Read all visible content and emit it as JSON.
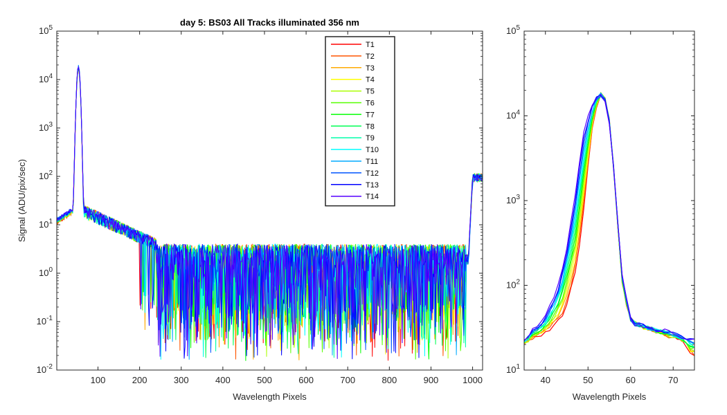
{
  "chart_data": [
    {
      "type": "line",
      "title": "day 5: BS03   All Tracks illuminated   356 nm",
      "xlabel": "Wavelength Pixels",
      "ylabel": "Signal (ADU/pix/sec)",
      "xlim": [
        1,
        1024
      ],
      "ylim": [
        0.01,
        100000
      ],
      "yscale": "log",
      "xticks": [
        100,
        200,
        300,
        400,
        500,
        600,
        700,
        800,
        900,
        1000
      ],
      "yticks": [
        0.01,
        0.1,
        1,
        10,
        100,
        1000,
        10000,
        100000
      ],
      "ytick_labels": [
        {
          "base": "10",
          "exp": "-2"
        },
        {
          "base": "10",
          "exp": "-1"
        },
        {
          "base": "10",
          "exp": "0"
        },
        {
          "base": "10",
          "exp": "1"
        },
        {
          "base": "10",
          "exp": "2"
        },
        {
          "base": "10",
          "exp": "3"
        },
        {
          "base": "10",
          "exp": "4"
        },
        {
          "base": "10",
          "exp": "5"
        }
      ],
      "legend": "top-right",
      "series": [
        {
          "name": "T1",
          "color": "#ff0000"
        },
        {
          "name": "T2",
          "color": "#ff5500"
        },
        {
          "name": "T3",
          "color": "#ffaa00"
        },
        {
          "name": "T4",
          "color": "#ffff00"
        },
        {
          "name": "T5",
          "color": "#aaff00"
        },
        {
          "name": "T6",
          "color": "#55ff00"
        },
        {
          "name": "T7",
          "color": "#00ff00"
        },
        {
          "name": "T8",
          "color": "#00ff55"
        },
        {
          "name": "T9",
          "color": "#00ffaa"
        },
        {
          "name": "T10",
          "color": "#00ffff"
        },
        {
          "name": "T11",
          "color": "#00aaff"
        },
        {
          "name": "T12",
          "color": "#0055ff"
        },
        {
          "name": "T13",
          "color": "#0000ff"
        },
        {
          "name": "T14",
          "color": "#5500ff"
        }
      ],
      "features": {
        "peak": {
          "x": 53,
          "y": 18000
        },
        "baseline_left": {
          "x": [
            1,
            40
          ],
          "y": [
            12,
            20
          ]
        },
        "shoulder": {
          "x": [
            60,
            240
          ],
          "y": [
            20,
            4
          ]
        },
        "noise_floor": {
          "x": [
            240,
            985
          ],
          "mean": 1.5,
          "max": 4,
          "min": 0.015
        },
        "right_edge": {
          "x": [
            995,
            1024
          ],
          "y": 95
        }
      }
    },
    {
      "type": "line",
      "title": "",
      "xlabel": "Wavelength Pixels",
      "ylabel": "",
      "xlim": [
        35,
        75
      ],
      "ylim": [
        10,
        100000
      ],
      "yscale": "log",
      "xticks": [
        40,
        50,
        60,
        70
      ],
      "yticks": [
        10,
        100,
        1000,
        10000,
        100000
      ],
      "ytick_labels": [
        {
          "base": "10",
          "exp": "1"
        },
        {
          "base": "10",
          "exp": "2"
        },
        {
          "base": "10",
          "exp": "3"
        },
        {
          "base": "10",
          "exp": "4"
        },
        {
          "base": "10",
          "exp": "5"
        }
      ],
      "x": [
        35,
        36,
        37,
        38,
        39,
        40,
        41,
        42,
        43,
        44,
        45,
        46,
        47,
        48,
        49,
        50,
        51,
        52,
        53,
        54,
        55,
        56,
        57,
        58,
        59,
        60,
        61,
        62,
        63,
        64,
        65,
        66,
        67,
        68,
        69,
        70,
        71,
        72,
        73,
        74,
        75
      ],
      "reference_series": {
        "T1": [
          20,
          22,
          24,
          25,
          26,
          28,
          30,
          34,
          38,
          45,
          60,
          90,
          140,
          300,
          800,
          2500,
          7000,
          13000,
          18000,
          16000,
          9000,
          2500,
          500,
          110,
          60,
          40,
          36,
          34,
          32,
          31,
          30,
          28,
          27,
          26,
          25,
          25,
          24,
          22,
          20,
          16,
          15
        ],
        "T14": [
          22,
          25,
          30,
          33,
          36,
          42,
          55,
          70,
          100,
          160,
          280,
          550,
          1200,
          3000,
          6500,
          10000,
          13500,
          16500,
          17500,
          15500,
          8500,
          2500,
          550,
          130,
          70,
          40,
          35,
          34,
          33,
          32,
          31,
          30,
          30,
          29,
          28,
          27,
          26,
          25,
          24,
          23,
          23
        ]
      }
    }
  ]
}
